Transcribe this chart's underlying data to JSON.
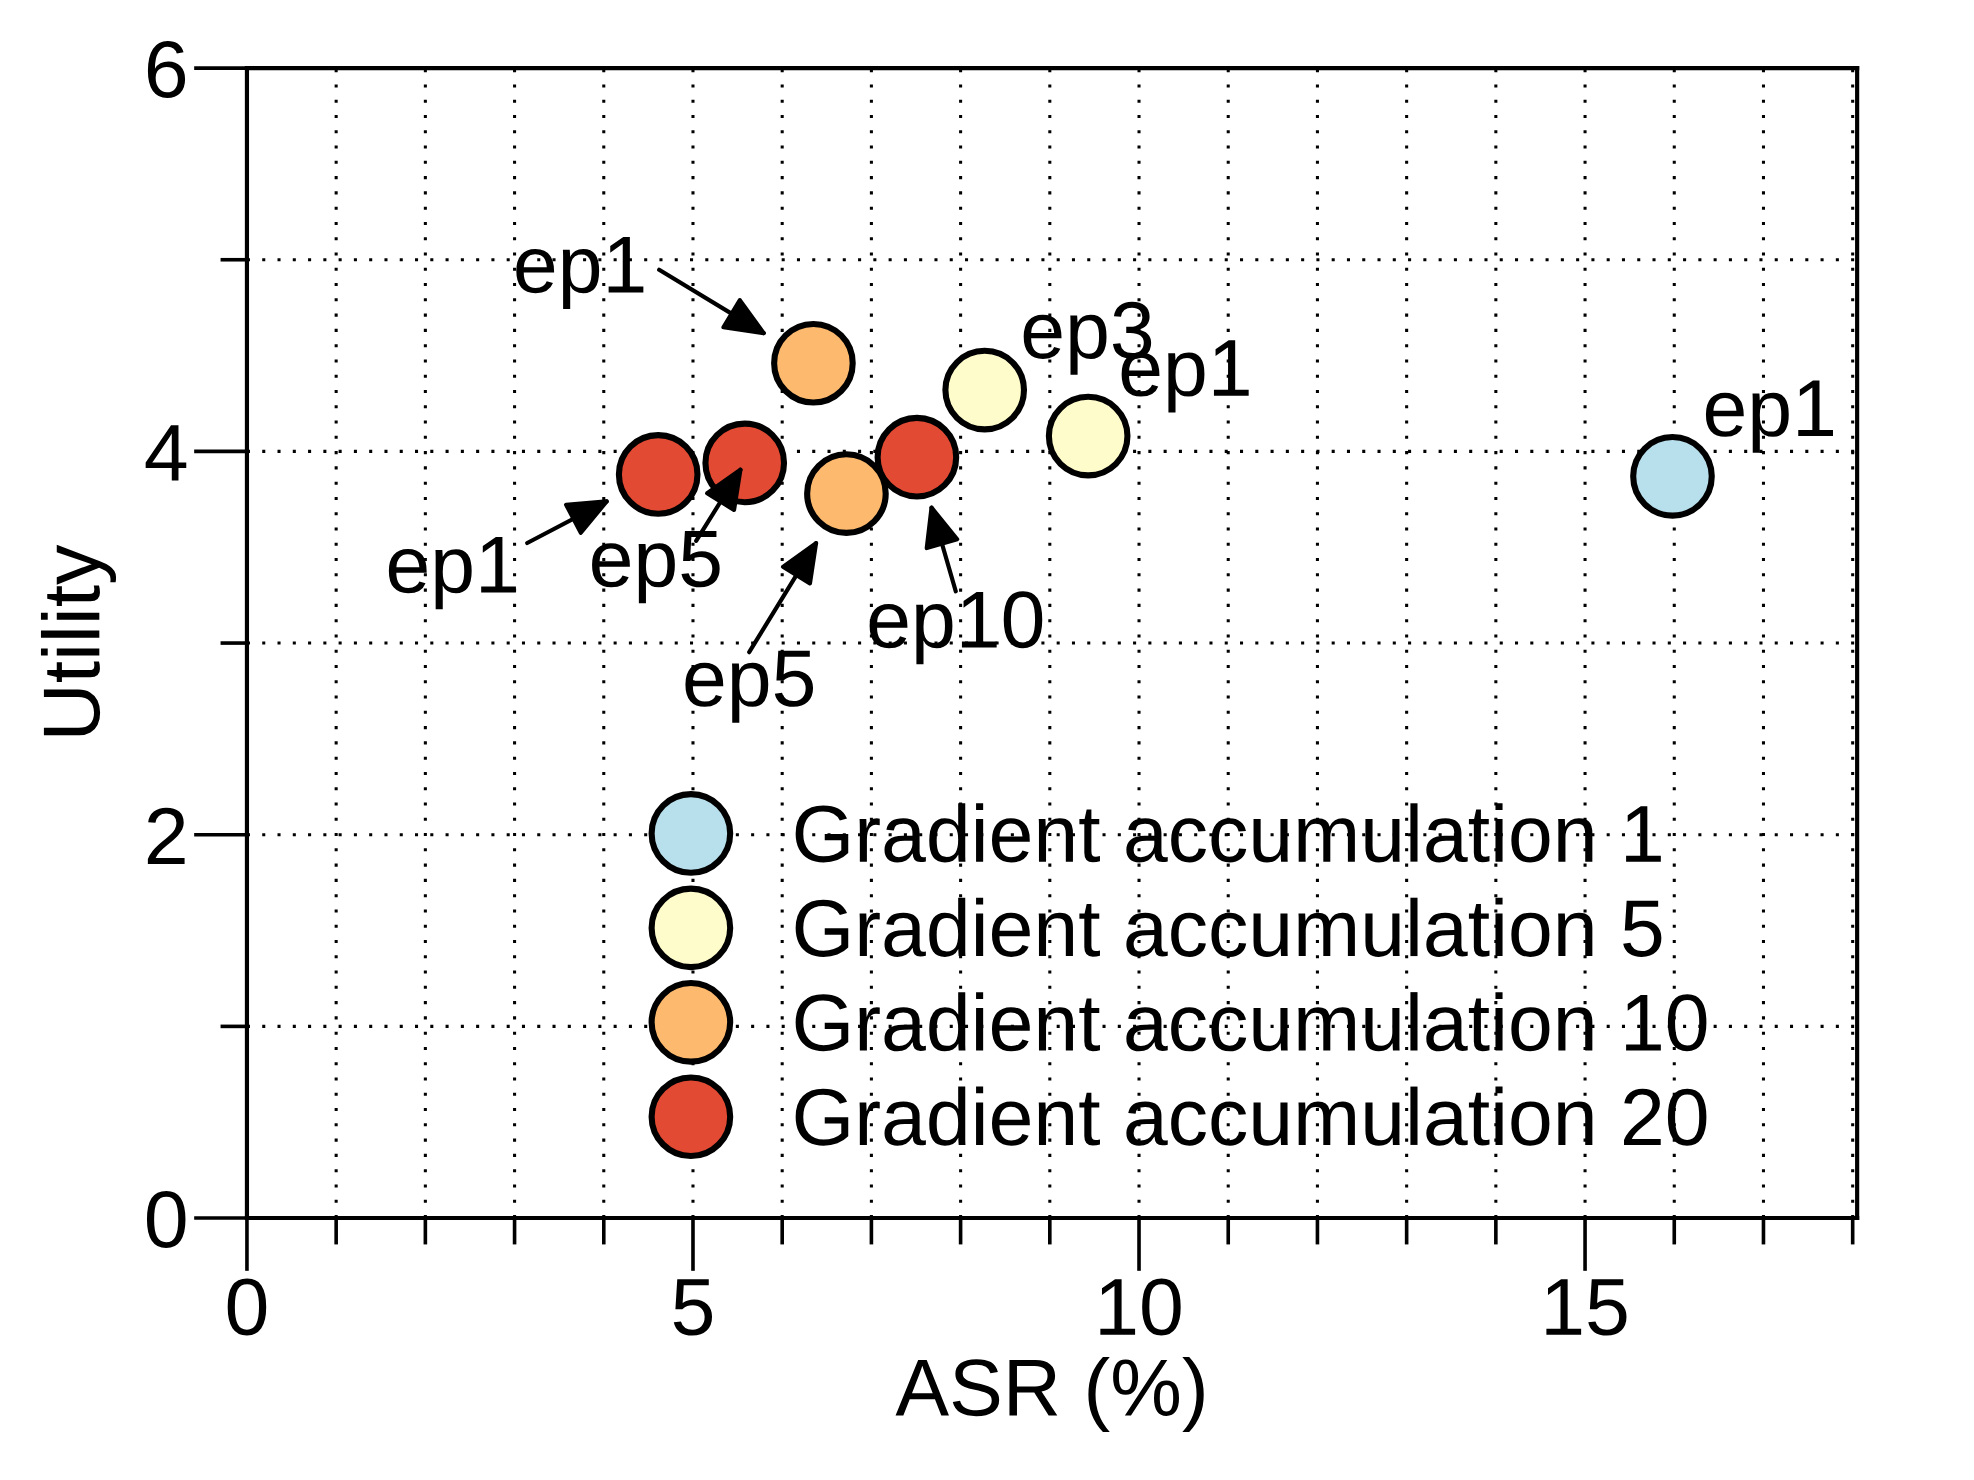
{
  "chart_data": {
    "type": "scatter",
    "xlabel": "ASR (%)",
    "ylabel": "Utility",
    "xlim": [
      0,
      18.05
    ],
    "xticks": [
      0,
      {
        "value": 1,
        "label": null
      },
      {
        "value": 2,
        "label": null
      },
      {
        "value": 3,
        "label": null
      },
      {
        "value": 4,
        "label": null
      },
      5,
      {
        "value": 6,
        "label": null
      },
      {
        "value": 7,
        "label": null
      },
      {
        "value": 8,
        "label": null
      },
      {
        "value": 9,
        "label": null
      },
      10,
      {
        "value": 11,
        "label": null
      },
      {
        "value": 12,
        "label": null
      },
      {
        "value": 13,
        "label": null
      },
      {
        "value": 14,
        "label": null
      },
      15,
      {
        "value": 16,
        "label": null
      },
      {
        "value": 17,
        "label": null
      },
      {
        "value": 18,
        "label": null
      }
    ],
    "ylim": [
      0,
      6
    ],
    "yticks": [
      0,
      {
        "value": 1,
        "label": null
      },
      2,
      {
        "value": 3,
        "label": null
      },
      4,
      {
        "value": 5,
        "label": null
      },
      6
    ],
    "grid": true,
    "legend": "bottom",
    "marker": "circle",
    "series": [
      {
        "name": "Gradient accumulation 1",
        "color": "#b8dfec",
        "x": [
          15.98
        ],
        "values": [
          3.87
        ]
      },
      {
        "name": "Gradient accumulation 5",
        "color": "#fffccc",
        "x": [
          8.27,
          9.43
        ],
        "values": [
          4.32,
          4.08
        ]
      },
      {
        "name": "Gradient accumulation 10",
        "color": "#fdba6f",
        "x": [
          6.35,
          6.72
        ],
        "values": [
          4.46,
          3.78
        ]
      },
      {
        "name": "Gradient accumulation 20",
        "color": "#e24a33",
        "x": [
          4.61,
          5.58,
          7.51
        ],
        "values": [
          3.88,
          3.94,
          3.97
        ]
      }
    ],
    "annotations": [
      {
        "text": "ep1",
        "x": 15.98,
        "y": 3.87
      },
      {
        "text": "ep3",
        "x": 8.27,
        "y": 4.32
      },
      {
        "text": "ep1",
        "x": 9.43,
        "y": 4.08
      },
      {
        "text": "ep1",
        "x": 6.35,
        "y": 4.46
      },
      {
        "text": "ep5",
        "x": 6.72,
        "y": 3.78
      },
      {
        "text": "ep1",
        "x": 4.61,
        "y": 3.88
      },
      {
        "text": "ep5",
        "x": 5.58,
        "y": 3.94
      },
      {
        "text": "ep10",
        "x": 7.51,
        "y": 3.97
      }
    ]
  }
}
